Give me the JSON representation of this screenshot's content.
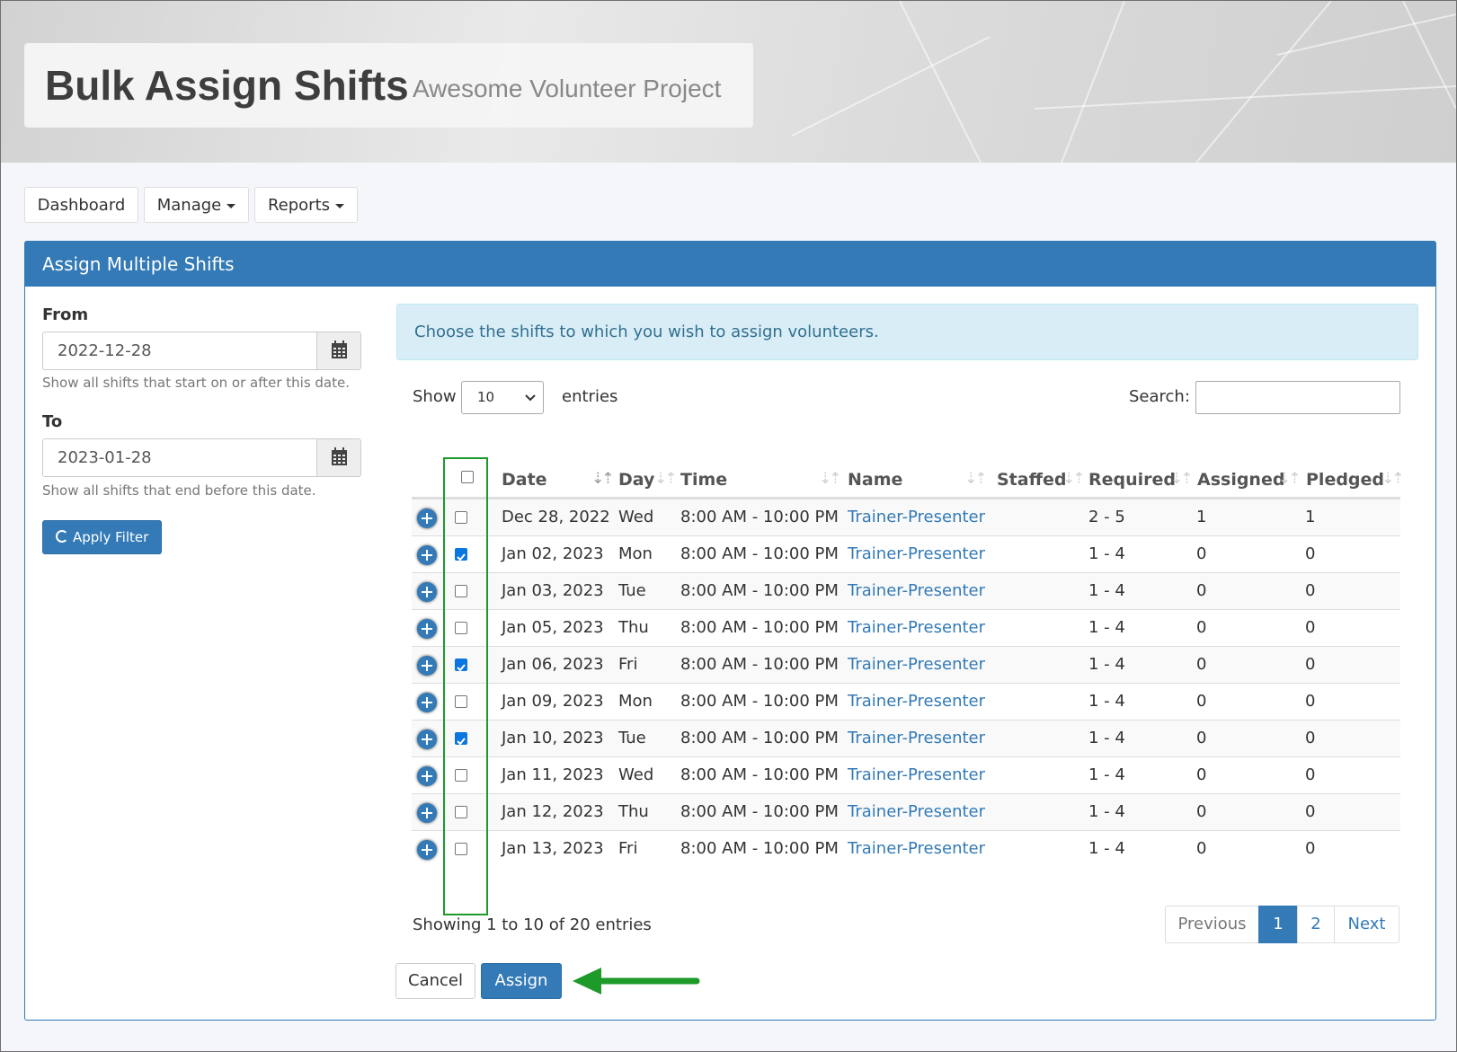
{
  "header": {
    "title": "Bulk Assign Shifts",
    "subtitle": "Awesome Volunteer Project"
  },
  "nav": {
    "dashboard": "Dashboard",
    "manage": "Manage",
    "reports": "Reports"
  },
  "panel": {
    "title": "Assign Multiple Shifts"
  },
  "filter": {
    "from_label": "From",
    "from_value": "2022-12-28",
    "from_help": "Show all shifts that start on or after this date.",
    "to_label": "To",
    "to_value": "2023-01-28",
    "to_help": "Show all shifts that end before this date.",
    "apply_label": "Apply Filter"
  },
  "info_message": "Choose the shifts to which you wish to assign volunteers.",
  "table_controls": {
    "show_label": "Show",
    "page_size": "10",
    "entries_label": "entries",
    "search_label": "Search:"
  },
  "table": {
    "columns": [
      "Date",
      "Day",
      "Time",
      "Name",
      "Staffed",
      "Required",
      "Assigned",
      "Pledged"
    ],
    "rows": [
      {
        "date": "Dec 28, 2022",
        "day": "Wed",
        "time": "8:00 AM - 10:00 PM",
        "name": "Trainer-Presenter",
        "staffed": "",
        "required": "2 - 5",
        "assigned": "1",
        "pledged": "1",
        "checked": false
      },
      {
        "date": "Jan 02, 2023",
        "day": "Mon",
        "time": "8:00 AM - 10:00 PM",
        "name": "Trainer-Presenter",
        "staffed": "",
        "required": "1 - 4",
        "assigned": "0",
        "pledged": "0",
        "checked": true
      },
      {
        "date": "Jan 03, 2023",
        "day": "Tue",
        "time": "8:00 AM - 10:00 PM",
        "name": "Trainer-Presenter",
        "staffed": "",
        "required": "1 - 4",
        "assigned": "0",
        "pledged": "0",
        "checked": false
      },
      {
        "date": "Jan 05, 2023",
        "day": "Thu",
        "time": "8:00 AM - 10:00 PM",
        "name": "Trainer-Presenter",
        "staffed": "",
        "required": "1 - 4",
        "assigned": "0",
        "pledged": "0",
        "checked": false
      },
      {
        "date": "Jan 06, 2023",
        "day": "Fri",
        "time": "8:00 AM - 10:00 PM",
        "name": "Trainer-Presenter",
        "staffed": "",
        "required": "1 - 4",
        "assigned": "0",
        "pledged": "0",
        "checked": true
      },
      {
        "date": "Jan 09, 2023",
        "day": "Mon",
        "time": "8:00 AM - 10:00 PM",
        "name": "Trainer-Presenter",
        "staffed": "",
        "required": "1 - 4",
        "assigned": "0",
        "pledged": "0",
        "checked": false
      },
      {
        "date": "Jan 10, 2023",
        "day": "Tue",
        "time": "8:00 AM - 10:00 PM",
        "name": "Trainer-Presenter",
        "staffed": "",
        "required": "1 - 4",
        "assigned": "0",
        "pledged": "0",
        "checked": true
      },
      {
        "date": "Jan 11, 2023",
        "day": "Wed",
        "time": "8:00 AM - 10:00 PM",
        "name": "Trainer-Presenter",
        "staffed": "",
        "required": "1 - 4",
        "assigned": "0",
        "pledged": "0",
        "checked": false
      },
      {
        "date": "Jan 12, 2023",
        "day": "Thu",
        "time": "8:00 AM - 10:00 PM",
        "name": "Trainer-Presenter",
        "staffed": "",
        "required": "1 - 4",
        "assigned": "0",
        "pledged": "0",
        "checked": false
      },
      {
        "date": "Jan 13, 2023",
        "day": "Fri",
        "time": "8:00 AM - 10:00 PM",
        "name": "Trainer-Presenter",
        "staffed": "",
        "required": "1 - 4",
        "assigned": "0",
        "pledged": "0",
        "checked": false
      }
    ]
  },
  "table_info": "Showing 1 to 10 of 20 entries",
  "pagination": {
    "previous": "Previous",
    "pages": [
      "1",
      "2"
    ],
    "current": "1",
    "next": "Next"
  },
  "actions": {
    "cancel": "Cancel",
    "assign": "Assign"
  },
  "colors": {
    "primary": "#337ab7",
    "highlight_green": "#1e9a2a",
    "info_bg": "#d9edf7"
  }
}
